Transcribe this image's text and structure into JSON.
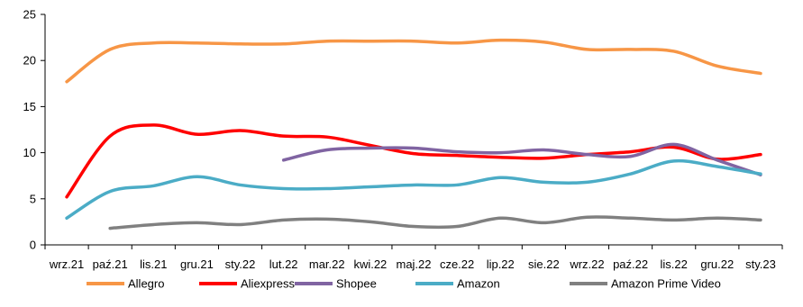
{
  "chart_data": {
    "type": "line",
    "title": "",
    "xlabel": "",
    "ylabel": "",
    "ylim": [
      0,
      25
    ],
    "yticks": [
      0,
      5,
      10,
      15,
      20,
      25
    ],
    "grid": false,
    "legend_position": "bottom",
    "smooth": true,
    "categories": [
      "wrz.21",
      "paź.21",
      "lis.21",
      "gru.21",
      "sty.22",
      "lut.22",
      "mar.22",
      "kwi.22",
      "maj.22",
      "cze.22",
      "lip.22",
      "sie.22",
      "wrz.22",
      "paź.22",
      "lis.22",
      "gru.22",
      "sty.23"
    ],
    "series": [
      {
        "name": "Allegro",
        "color": "#F79646",
        "values": [
          17.7,
          21.2,
          21.9,
          21.9,
          21.8,
          21.8,
          22.1,
          22.1,
          22.1,
          21.9,
          22.2,
          22.0,
          21.2,
          21.2,
          21.0,
          19.4,
          18.6
        ]
      },
      {
        "name": "Aliexpress",
        "color": "#FF0000",
        "values": [
          5.2,
          11.8,
          13.0,
          12.0,
          12.4,
          11.8,
          11.7,
          10.8,
          9.9,
          9.7,
          9.5,
          9.4,
          9.8,
          10.1,
          10.6,
          9.3,
          9.8
        ]
      },
      {
        "name": "Shopee",
        "color": "#8064A2",
        "values": [
          null,
          null,
          null,
          null,
          null,
          9.2,
          10.3,
          10.5,
          10.5,
          10.1,
          10.0,
          10.3,
          9.8,
          9.6,
          10.9,
          9.2,
          7.6
        ]
      },
      {
        "name": "Amazon",
        "color": "#4BACC6",
        "values": [
          2.9,
          5.8,
          6.4,
          7.4,
          6.5,
          6.1,
          6.1,
          6.3,
          6.5,
          6.5,
          7.3,
          6.8,
          6.8,
          7.7,
          9.1,
          8.5,
          7.7
        ]
      },
      {
        "name": "Amazon Prime Video",
        "color": "#808080",
        "values": [
          null,
          1.8,
          2.2,
          2.4,
          2.2,
          2.7,
          2.8,
          2.5,
          2.0,
          2.0,
          2.9,
          2.4,
          3.0,
          2.9,
          2.7,
          2.9,
          2.7
        ]
      }
    ]
  }
}
